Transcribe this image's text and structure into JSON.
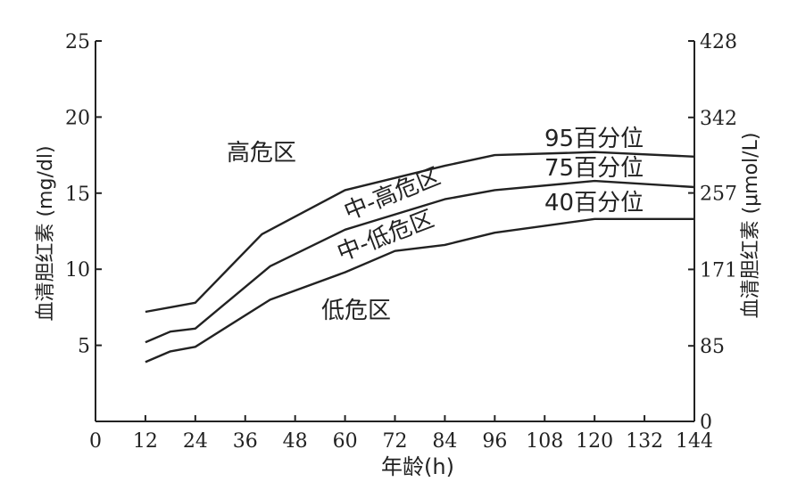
{
  "chart_data": {
    "type": "line",
    "xlabel": "年龄(h)",
    "ylabel_left": "血清胆红素 (mg/dl)",
    "ylabel_right": "血清胆红素 (μmol/L)",
    "x_ticks": [
      "0",
      "12",
      "24",
      "36",
      "48",
      "60",
      "72",
      "84",
      "96",
      "108",
      "120",
      "132",
      "144"
    ],
    "y_left_ticks": [
      "5",
      "10",
      "15",
      "20",
      "25"
    ],
    "y_right_ticks": [
      "0",
      "85",
      "171",
      "257",
      "342",
      "428"
    ],
    "xlim": [
      0,
      144
    ],
    "ylim_left": [
      0,
      25
    ],
    "ylim_right": [
      0,
      428
    ],
    "grid": false,
    "series": [
      {
        "name": "95百分位",
        "x": [
          12,
          18,
          24,
          40,
          60,
          84,
          96,
          120,
          144
        ],
        "values": [
          7.2,
          7.5,
          7.8,
          12.3,
          15.2,
          16.8,
          17.5,
          17.7,
          17.4
        ]
      },
      {
        "name": "75百分位",
        "x": [
          12,
          18,
          24,
          42,
          60,
          84,
          96,
          120,
          144
        ],
        "values": [
          5.2,
          5.9,
          6.1,
          10.2,
          12.6,
          14.6,
          15.2,
          15.8,
          15.4
        ]
      },
      {
        "name": "40百分位",
        "x": [
          12,
          18,
          24,
          42,
          60,
          72,
          84,
          96,
          120,
          144
        ],
        "values": [
          3.9,
          4.6,
          4.9,
          8.0,
          9.8,
          11.2,
          11.6,
          12.4,
          13.3,
          13.3
        ]
      }
    ],
    "zone_labels": [
      "高危区",
      "中-高危区",
      "中-低危区",
      "低危区"
    ]
  }
}
